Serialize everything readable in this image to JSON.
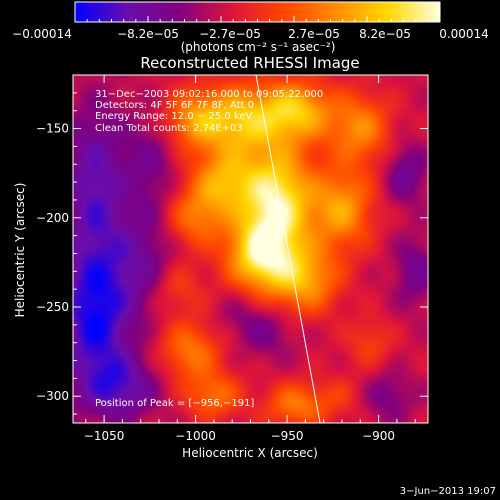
{
  "chart_data": {
    "type": "heatmap",
    "title": "Reconstructed RHESSI Image",
    "xlabel": "Heliocentric X (arcsec)",
    "ylabel": "Heliocentric Y (arcsec)",
    "xlim": [
      -1067,
      -873
    ],
    "ylim": [
      -315,
      -120
    ],
    "x_ticks": [
      -1050,
      -1000,
      -950,
      -900
    ],
    "y_ticks": [
      -150,
      -200,
      -250,
      -300
    ],
    "x_tick_labels": [
      "−1050",
      "−1000",
      "−950",
      "−900"
    ],
    "y_tick_labels": [
      "−150",
      "−200",
      "−250",
      "−300"
    ],
    "colorbar": {
      "range": [
        -0.00014,
        0.00014
      ],
      "tick_labels": [
        "−0.00014",
        "−8.2e−05",
        "−2.7e−05",
        "2.7e−05",
        "8.2e−05",
        "0.00014"
      ],
      "unit_label": "(photons cm⁻² s⁻¹ asec⁻²)",
      "colors": [
        "#0000ff",
        "#6a0dad",
        "#800080",
        "#dc143c",
        "#ff4500",
        "#ff8c00",
        "#ffd700",
        "#ffffe0"
      ]
    },
    "info_lines": [
      "31−Dec−2003 09:02:16.000 to 09:05:22.000",
      "Detectors: 4F 5F 6F 7F 8F, Att 0",
      "Energy Range: 12.0 − 25.0 keV",
      "Clean     Total counts: 2.74E+03"
    ],
    "peak_label": "Position of Peak = [−956,−191]",
    "peak": [
      -956,
      -191
    ],
    "limb_line": [
      [
        -967,
        -120
      ],
      [
        -932,
        -315
      ]
    ],
    "blobs": [
      {
        "x": -956,
        "y": -191,
        "sx": 14,
        "sy": 22,
        "a": 1.15
      },
      {
        "x": -965,
        "y": -222,
        "sx": 13,
        "sy": 14,
        "a": 0.9
      },
      {
        "x": -940,
        "y": -235,
        "sx": 13,
        "sy": 13,
        "a": 0.7
      },
      {
        "x": -985,
        "y": -180,
        "sx": 12,
        "sy": 13,
        "a": 0.7
      },
      {
        "x": -975,
        "y": -145,
        "sx": 14,
        "sy": 14,
        "a": 0.75
      },
      {
        "x": -945,
        "y": -140,
        "sx": 14,
        "sy": 12,
        "a": 0.85
      },
      {
        "x": -910,
        "y": -150,
        "sx": 12,
        "sy": 14,
        "a": 0.6
      },
      {
        "x": -920,
        "y": -195,
        "sx": 12,
        "sy": 16,
        "a": 0.7
      },
      {
        "x": -1000,
        "y": -145,
        "sx": 12,
        "sy": 12,
        "a": 0.65
      },
      {
        "x": -1000,
        "y": -200,
        "sx": 11,
        "sy": 12,
        "a": 0.5
      },
      {
        "x": -1010,
        "y": -240,
        "sx": 10,
        "sy": 10,
        "a": 0.3
      },
      {
        "x": -1003,
        "y": -275,
        "sx": 12,
        "sy": 12,
        "a": 0.55
      },
      {
        "x": -990,
        "y": -300,
        "sx": 11,
        "sy": 9,
        "a": 0.5
      },
      {
        "x": -945,
        "y": -305,
        "sx": 12,
        "sy": 9,
        "a": 0.55
      },
      {
        "x": -905,
        "y": -270,
        "sx": 9,
        "sy": 10,
        "a": 0.3
      },
      {
        "x": -920,
        "y": -300,
        "sx": 10,
        "sy": 9,
        "a": 0.2
      },
      {
        "x": -960,
        "y": -265,
        "sx": 10,
        "sy": 10,
        "a": -0.25
      },
      {
        "x": -1055,
        "y": -255,
        "sx": 14,
        "sy": 30,
        "a": -0.8
      },
      {
        "x": -1055,
        "y": -180,
        "sx": 12,
        "sy": 30,
        "a": -0.55
      },
      {
        "x": -1040,
        "y": -295,
        "sx": 14,
        "sy": 12,
        "a": -0.5
      },
      {
        "x": -1030,
        "y": -225,
        "sx": 12,
        "sy": 20,
        "a": -0.35
      },
      {
        "x": -1025,
        "y": -170,
        "sx": 10,
        "sy": 20,
        "a": -0.3
      },
      {
        "x": -885,
        "y": -175,
        "sx": 8,
        "sy": 12,
        "a": -0.4
      },
      {
        "x": -880,
        "y": -230,
        "sx": 8,
        "sy": 14,
        "a": -0.35
      },
      {
        "x": -895,
        "y": -300,
        "sx": 10,
        "sy": 10,
        "a": -0.3
      },
      {
        "x": -975,
        "y": -255,
        "sx": 10,
        "sy": 10,
        "a": -0.2
      }
    ]
  },
  "footer": {
    "timestamp": "3−Jun−2013 19:07"
  }
}
